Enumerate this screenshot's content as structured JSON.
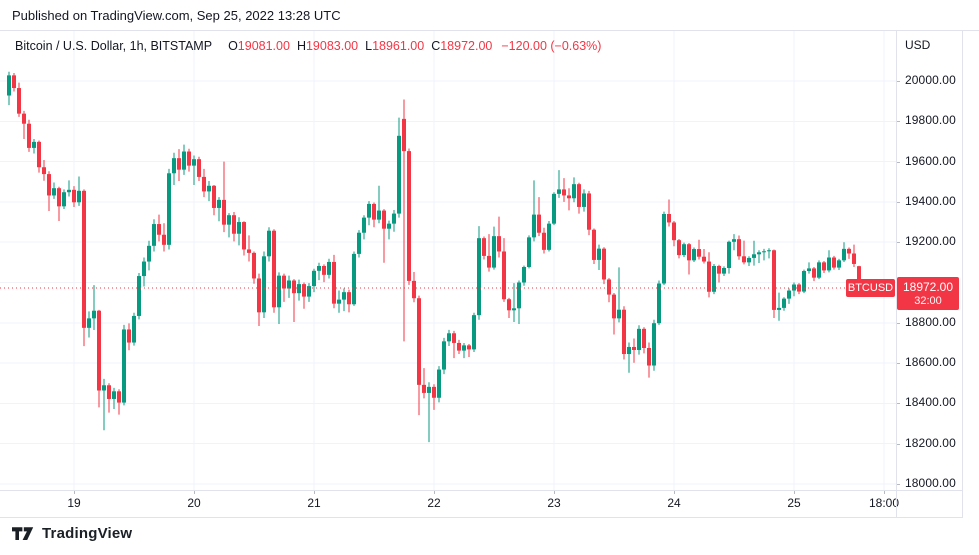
{
  "header": {
    "published": "Published on TradingView.com, Sep 25, 2022 13:28 UTC"
  },
  "legend": {
    "title": "Bitcoin / U.S. Dollar, 1h, BITSTAMP",
    "o_label": "O",
    "o_value": "19081.00",
    "h_label": "H",
    "h_value": "19083.00",
    "l_label": "L",
    "l_value": "18961.00",
    "c_label": "C",
    "c_value": "18972.00",
    "change": "−120.00 (−0.63%)"
  },
  "axis": {
    "currency": "USD"
  },
  "price_line": {
    "symbol_tag": "BTCUSD",
    "price": "18972.00",
    "countdown": "32:00",
    "value": 18972
  },
  "footer": {
    "brand": "TradingView"
  },
  "chart_data": {
    "type": "candlestick",
    "title": "Bitcoin / U.S. Dollar",
    "symbol": "BTCUSD",
    "exchange": "BITSTAMP",
    "interval": "1h",
    "last_candle": {
      "open": 19081,
      "high": 19083,
      "low": 18961,
      "close": 18972,
      "change": -120.0,
      "change_pct": -0.63
    },
    "colors": {
      "up": "#089981",
      "down": "#F23645",
      "price_line": "#F23645",
      "grid": "#F0F3FA"
    },
    "y_axis": {
      "grid": true,
      "ylim": [
        17940,
        20110
      ],
      "labels": [
        {
          "p": 20000,
          "label": "20000.00"
        },
        {
          "p": 19800,
          "label": "19800.00"
        },
        {
          "p": 19600,
          "label": "19600.00"
        },
        {
          "p": 19400,
          "label": "19400.00"
        },
        {
          "p": 19200,
          "label": "19200.00"
        },
        {
          "p": 19000,
          "label": "19000.00"
        },
        {
          "p": 18800,
          "label": "18800.00"
        },
        {
          "p": 18600,
          "label": "18600.00"
        },
        {
          "p": 18400,
          "label": "18400.00"
        },
        {
          "p": 18200,
          "label": "18200.00"
        },
        {
          "p": 18000,
          "label": "18000.00"
        }
      ]
    },
    "x_axis": {
      "start": "Sep 18 10:00 UTC",
      "end": "Sep 25 13:00 UTC",
      "ticks": [
        {
          "label": "19",
          "i": 13
        },
        {
          "label": "20",
          "i": 37
        },
        {
          "label": "21",
          "i": 61
        },
        {
          "label": "22",
          "i": 85
        },
        {
          "label": "23",
          "i": 109
        },
        {
          "label": "24",
          "i": 133
        },
        {
          "label": "25",
          "i": 157
        },
        {
          "label": "18:00",
          "i": 175
        }
      ]
    },
    "candles": [
      [
        19928,
        20046,
        19880,
        20028
      ],
      [
        20028,
        20040,
        19948,
        19965
      ],
      [
        19965,
        19992,
        19822,
        19838
      ],
      [
        19838,
        19852,
        19712,
        19788
      ],
      [
        19788,
        19808,
        19648,
        19668
      ],
      [
        19668,
        19712,
        19640,
        19698
      ],
      [
        19698,
        19705,
        19545,
        19572
      ],
      [
        19572,
        19608,
        19505,
        19538
      ],
      [
        19538,
        19552,
        19355,
        19432
      ],
      [
        19432,
        19496,
        19415,
        19468
      ],
      [
        19468,
        19475,
        19305,
        19378
      ],
      [
        19378,
        19462,
        19365,
        19448
      ],
      [
        19448,
        19507,
        19427,
        19460
      ],
      [
        19460,
        19478,
        19375,
        19398
      ],
      [
        19398,
        19526,
        19380,
        19455
      ],
      [
        19455,
        19462,
        18684,
        18775
      ],
      [
        18775,
        18857,
        18727,
        18822
      ],
      [
        18822,
        18987,
        18764,
        18860
      ],
      [
        18860,
        18864,
        18380,
        18464
      ],
      [
        18464,
        18522,
        18267,
        18490
      ],
      [
        18490,
        18500,
        18354,
        18422
      ],
      [
        18422,
        18477,
        18372,
        18460
      ],
      [
        18460,
        18470,
        18344,
        18404
      ],
      [
        18404,
        18790,
        18390,
        18767
      ],
      [
        18767,
        18797,
        18664,
        18702
      ],
      [
        18702,
        18850,
        18687,
        18834
      ],
      [
        18834,
        19047,
        18817,
        19032
      ],
      [
        19032,
        19124,
        18980,
        19104
      ],
      [
        19104,
        19207,
        19060,
        19182
      ],
      [
        19182,
        19314,
        19154,
        19290
      ],
      [
        19290,
        19337,
        19204,
        19237
      ],
      [
        19237,
        19294,
        19154,
        19187
      ],
      [
        19187,
        19564,
        19164,
        19542
      ],
      [
        19542,
        19644,
        19484,
        19617
      ],
      [
        19617,
        19662,
        19504,
        19560
      ],
      [
        19560,
        19684,
        19534,
        19650
      ],
      [
        19650,
        19664,
        19550,
        19580
      ],
      [
        19580,
        19630,
        19484,
        19612
      ],
      [
        19612,
        19624,
        19504,
        19524
      ],
      [
        19524,
        19564,
        19424,
        19452
      ],
      [
        19452,
        19504,
        19404,
        19480
      ],
      [
        19480,
        19484,
        19334,
        19370
      ],
      [
        19370,
        19424,
        19304,
        19410
      ],
      [
        19410,
        19600,
        19250,
        19287
      ],
      [
        19287,
        19344,
        19224,
        19334
      ],
      [
        19334,
        19350,
        19204,
        19242
      ],
      [
        19242,
        19324,
        19184,
        19300
      ],
      [
        19300,
        19304,
        19134,
        19164
      ],
      [
        19164,
        19234,
        19104,
        19147
      ],
      [
        19147,
        19154,
        18994,
        19020
      ],
      [
        19020,
        19044,
        18784,
        18852
      ],
      [
        18852,
        19154,
        18824,
        19130
      ],
      [
        19130,
        19274,
        19104,
        19257
      ],
      [
        19257,
        19264,
        18850,
        18877
      ],
      [
        18877,
        19050,
        18794,
        19034
      ],
      [
        19034,
        19044,
        18904,
        18970
      ],
      [
        18970,
        19034,
        18924,
        19010
      ],
      [
        19010,
        19017,
        18804,
        18947
      ],
      [
        18947,
        19014,
        18910,
        18992
      ],
      [
        18992,
        19000,
        18870,
        18930
      ],
      [
        18930,
        18997,
        18904,
        18982
      ],
      [
        18982,
        19068,
        18952,
        19058
      ],
      [
        19058,
        19098,
        19012,
        19082
      ],
      [
        19082,
        19090,
        19002,
        19038
      ],
      [
        19038,
        19118,
        19020,
        19102
      ],
      [
        19102,
        19137,
        18872,
        18895
      ],
      [
        18895,
        18960,
        18850,
        18915
      ],
      [
        18915,
        18970,
        18858,
        18952
      ],
      [
        18952,
        18964,
        18852,
        18892
      ],
      [
        18892,
        19154,
        18884,
        19142
      ],
      [
        19142,
        19260,
        19124,
        19247
      ],
      [
        19247,
        19334,
        19214,
        19322
      ],
      [
        19322,
        19404,
        19284,
        19390
      ],
      [
        19390,
        19397,
        19274,
        19312
      ],
      [
        19312,
        19480,
        19294,
        19357
      ],
      [
        19357,
        19364,
        19098,
        19267
      ],
      [
        19267,
        19307,
        19214,
        19292
      ],
      [
        19292,
        19360,
        19252,
        19342
      ],
      [
        19342,
        19818,
        19322,
        19728
      ],
      [
        19812,
        19908,
        18708,
        19652
      ],
      [
        19652,
        19665,
        18988,
        19008
      ],
      [
        19008,
        19052,
        18902,
        18922
      ],
      [
        18922,
        18935,
        18342,
        18492
      ],
      [
        18492,
        18575,
        18425,
        18452
      ],
      [
        18452,
        18505,
        18208,
        18482
      ],
      [
        18482,
        18495,
        18368,
        18428
      ],
      [
        18428,
        18585,
        18405,
        18568
      ],
      [
        18568,
        18725,
        18545,
        18708
      ],
      [
        18708,
        18765,
        18685,
        18748
      ],
      [
        18748,
        18760,
        18625,
        18700
      ],
      [
        18700,
        18715,
        18645,
        18662
      ],
      [
        18662,
        18700,
        18625,
        18688
      ],
      [
        18688,
        18695,
        18630,
        18668
      ],
      [
        18668,
        18850,
        18655,
        18838
      ],
      [
        18838,
        19280,
        18815,
        19220
      ],
      [
        19220,
        19228,
        19114,
        19132
      ],
      [
        19132,
        19240,
        19054,
        19074
      ],
      [
        19074,
        19277,
        19064,
        19230
      ],
      [
        19230,
        19327,
        19124,
        19154
      ],
      [
        19154,
        19220,
        18904,
        18917
      ],
      [
        18917,
        18924,
        18824,
        18862
      ],
      [
        18862,
        18997,
        18804,
        18872
      ],
      [
        18872,
        19010,
        18794,
        19000
      ],
      [
        19000,
        19084,
        18984,
        19077
      ],
      [
        19077,
        19234,
        19070,
        19224
      ],
      [
        19224,
        19507,
        19204,
        19337
      ],
      [
        19337,
        19424,
        19230,
        19247
      ],
      [
        19247,
        19272,
        19144,
        19162
      ],
      [
        19162,
        19305,
        19154,
        19292
      ],
      [
        19292,
        19448,
        19285,
        19440
      ],
      [
        19440,
        19558,
        19420,
        19462
      ],
      [
        19462,
        19518,
        19400,
        19432
      ],
      [
        19432,
        19468,
        19358,
        19418
      ],
      [
        19418,
        19522,
        19398,
        19488
      ],
      [
        19488,
        19495,
        19342,
        19375
      ],
      [
        19375,
        19462,
        19352,
        19442
      ],
      [
        19442,
        19455,
        19235,
        19262
      ],
      [
        19262,
        19268,
        19092,
        19112
      ],
      [
        19112,
        19188,
        19062,
        19168
      ],
      [
        19168,
        19175,
        18992,
        19015
      ],
      [
        19015,
        19022,
        18902,
        18940
      ],
      [
        18940,
        18948,
        18742,
        18822
      ],
      [
        18822,
        19075,
        18802,
        18865
      ],
      [
        18865,
        18882,
        18618,
        18645
      ],
      [
        18645,
        18702,
        18552,
        18680
      ],
      [
        18680,
        18722,
        18602,
        18665
      ],
      [
        18665,
        18788,
        18642,
        18770
      ],
      [
        18770,
        18778,
        18648,
        18675
      ],
      [
        18675,
        18702,
        18528,
        18588
      ],
      [
        18588,
        18815,
        18562,
        18798
      ],
      [
        18798,
        19010,
        18790,
        18995
      ],
      [
        18995,
        19352,
        18987,
        19340
      ],
      [
        19340,
        19412,
        19278,
        19298
      ],
      [
        19298,
        19305,
        19180,
        19210
      ],
      [
        19210,
        19216,
        19120,
        19136
      ],
      [
        19136,
        19198,
        19126,
        19190
      ],
      [
        19190,
        19196,
        19040,
        19110
      ],
      [
        19110,
        19174,
        19102,
        19166
      ],
      [
        19166,
        19212,
        19114,
        19128
      ],
      [
        19128,
        19166,
        19094,
        19104
      ],
      [
        19104,
        19150,
        18926,
        18954
      ],
      [
        18954,
        19092,
        18942,
        19082
      ],
      [
        19082,
        19088,
        19000,
        19044
      ],
      [
        19044,
        19080,
        19032,
        19072
      ],
      [
        19072,
        19208,
        19044,
        19202
      ],
      [
        19202,
        19240,
        19160,
        19215
      ],
      [
        19215,
        19233,
        19113,
        19130
      ],
      [
        19130,
        19208,
        19090,
        19100
      ],
      [
        19100,
        19130,
        19082,
        19122
      ],
      [
        19122,
        19207,
        19084,
        19140
      ],
      [
        19140,
        19160,
        19097,
        19150
      ],
      [
        19150,
        19167,
        19110,
        19155
      ],
      [
        19155,
        19170,
        19120,
        19160
      ],
      [
        19160,
        19164,
        18824,
        18864
      ],
      [
        18864,
        18950,
        18810,
        18874
      ],
      [
        18874,
        18927,
        18860,
        18920
      ],
      [
        18920,
        18970,
        18894,
        18960
      ],
      [
        18960,
        19000,
        18932,
        18990
      ],
      [
        18990,
        18997,
        18942,
        18955
      ],
      [
        18955,
        19064,
        18947,
        19057
      ],
      [
        19057,
        19100,
        19044,
        19070
      ],
      [
        19070,
        19077,
        19007,
        19024
      ],
      [
        19024,
        19110,
        19017,
        19100
      ],
      [
        19100,
        19107,
        19047,
        19060
      ],
      [
        19060,
        19160,
        19050,
        19124
      ],
      [
        19124,
        19132,
        19064,
        19074
      ],
      [
        19074,
        19117,
        19062,
        19110
      ],
      [
        19110,
        19200,
        19102,
        19167
      ],
      [
        19167,
        19174,
        19117,
        19144
      ],
      [
        19144,
        19188,
        19077,
        19092
      ],
      [
        19081,
        19083,
        18961,
        18972
      ]
    ]
  }
}
